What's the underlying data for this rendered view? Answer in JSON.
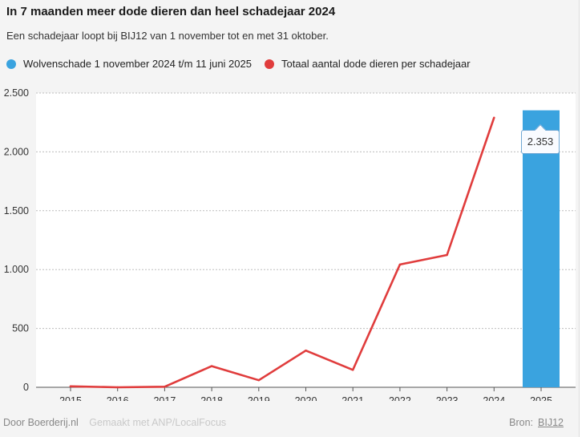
{
  "header": {
    "title": "In 7 maanden meer dode dieren dan heel schadejaar 2024",
    "subtitle": "Een schadejaar loopt bij BIJ12 van 1 november tot en met 31 oktober."
  },
  "legend": [
    {
      "label": "Wolvenschade 1 november 2024 t/m 11 juni 2025",
      "color": "#3aa3df"
    },
    {
      "label": "Totaal aantal dode dieren per schadejaar",
      "color": "#e03c3c"
    }
  ],
  "tooltip": {
    "label": "2.353"
  },
  "footer": {
    "credit": "Door Boerderij.nl",
    "made_with": "Gemaakt met ANP/LocalFocus",
    "source_label": "Bron:",
    "source_link": "BIJ12"
  },
  "chart_data": {
    "type": "bar+line",
    "categories": [
      "2015",
      "2016",
      "2017",
      "2018",
      "2019",
      "2020",
      "2021",
      "2022",
      "2023",
      "2024",
      "2025"
    ],
    "series": [
      {
        "name": "Totaal aantal dode dieren per schadejaar",
        "type": "line",
        "color": "#e03c3c",
        "values": [
          8,
          0,
          5,
          180,
          60,
          312,
          148,
          1043,
          1124,
          2290,
          null
        ]
      },
      {
        "name": "Wolvenschade 1 november 2024 t/m 11 juni 2025",
        "type": "bar",
        "color": "#3aa3df",
        "values": [
          null,
          null,
          null,
          null,
          null,
          null,
          null,
          null,
          null,
          null,
          2353
        ]
      }
    ],
    "ylim": [
      0,
      2500
    ],
    "yticks": [
      0,
      500,
      1000,
      1500,
      2000,
      2500
    ],
    "ytick_labels": [
      "0",
      "500",
      "1.000",
      "1.500",
      "2.000",
      "2.500"
    ],
    "grid": true,
    "legend_position": "top-left"
  }
}
